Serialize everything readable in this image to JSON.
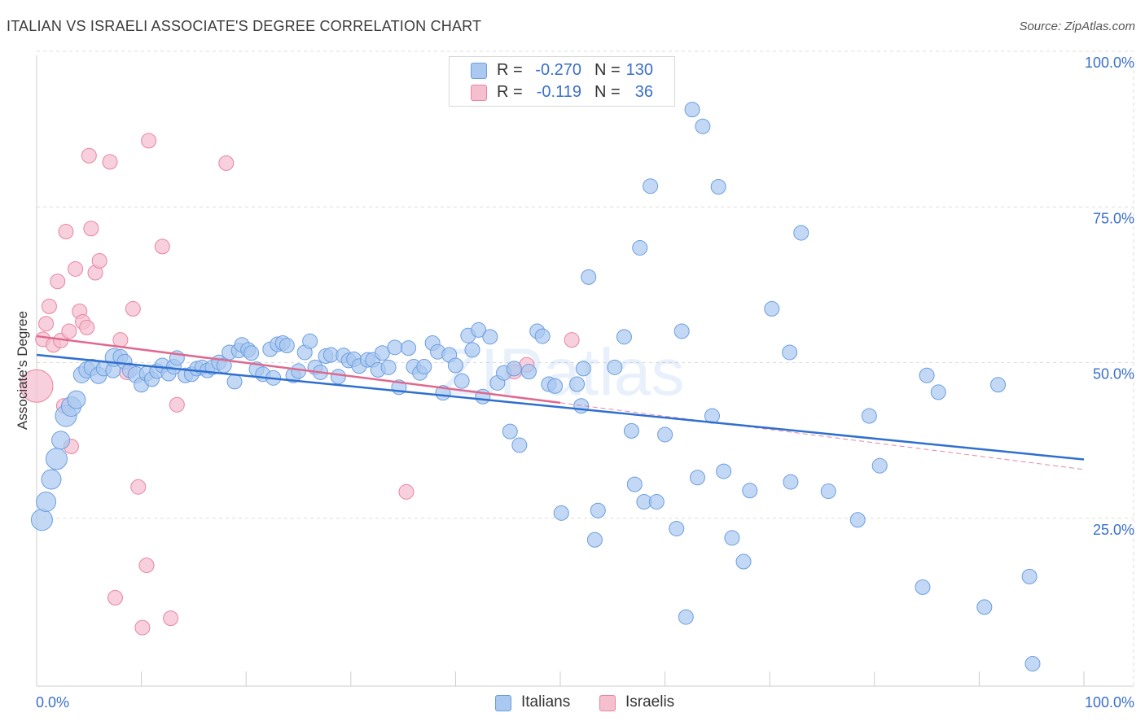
{
  "title": "ITALIAN VS ISRAELI ASSOCIATE'S DEGREE CORRELATION CHART",
  "source": "Source: ZipAtlas.com",
  "watermark": "ZIPatlas",
  "colors": {
    "blue_fill": "#aac8f0",
    "blue_stroke": "#6b9ee0",
    "blue_line": "#2f6fd0",
    "pink_fill": "#f6bfd0",
    "pink_stroke": "#e8869f",
    "pink_line": "#e0688f",
    "grid": "#dddddd",
    "axis_label": "#3a6fcb"
  },
  "legend": {
    "rows": [
      {
        "r_label": "R =",
        "r_value": "-0.270",
        "n_label": "N =",
        "n_value": "130",
        "swatch": "blue"
      },
      {
        "r_label": "R =",
        "r_value": "-0.119",
        "n_label": "N =",
        "n_value": "36",
        "swatch": "pink"
      }
    ]
  },
  "bottom_legend": [
    "Italians",
    "Israelis"
  ],
  "chart_data": {
    "type": "scatter",
    "title": "ITALIAN VS ISRAELI ASSOCIATE'S DEGREE CORRELATION CHART",
    "xlabel": "",
    "ylabel": "Associate's Degree",
    "xlim": [
      0,
      100
    ],
    "ylim": [
      0,
      100
    ],
    "x_tick_labels": [
      "0.0%",
      "100.0%"
    ],
    "y_tick_labels": [
      "100.0%",
      "75.0%",
      "50.0%",
      "25.0%"
    ],
    "y_ticks": [
      100,
      75,
      50,
      25
    ],
    "grid": true,
    "legend_position": "top-center",
    "series": [
      {
        "name": "Italians",
        "color": "#aac8f0",
        "trend": {
          "x": [
            0,
            100
          ],
          "y": [
            53.2,
            36.4
          ]
        },
        "points": [
          [
            0.5,
            26.7,
            13
          ],
          [
            0.9,
            29.6,
            12
          ],
          [
            1.4,
            33.2,
            12
          ],
          [
            1.9,
            36.5,
            13
          ],
          [
            2.3,
            39.5,
            11
          ],
          [
            2.8,
            43.4,
            13
          ],
          [
            3.3,
            44.9,
            12
          ],
          [
            3.8,
            46.0,
            11
          ],
          [
            4.3,
            50.0,
            10
          ],
          [
            4.8,
            50.8,
            10
          ],
          [
            5.3,
            51.2,
            10
          ],
          [
            5.9,
            49.9,
            10
          ],
          [
            6.4,
            51.0,
            9
          ],
          [
            7.3,
            50.7,
            9
          ],
          [
            7.4,
            52.8,
            11
          ],
          [
            8.0,
            52.9,
            9
          ],
          [
            8.4,
            52.1,
            9
          ],
          [
            8.9,
            50.7,
            9
          ],
          [
            9.5,
            50.0,
            10
          ],
          [
            10.0,
            48.4,
            9
          ],
          [
            10.5,
            50.2,
            9
          ],
          [
            11.0,
            49.3,
            9
          ],
          [
            11.5,
            50.6,
            9
          ],
          [
            12.0,
            51.5,
            9
          ],
          [
            12.6,
            50.2,
            9
          ],
          [
            13.1,
            51.3,
            9
          ],
          [
            13.4,
            52.7,
            9
          ],
          [
            14.2,
            49.9,
            9
          ],
          [
            14.8,
            50.1,
            9
          ],
          [
            15.3,
            51.0,
            9
          ],
          [
            15.8,
            51.2,
            9
          ],
          [
            16.3,
            50.7,
            9
          ],
          [
            16.8,
            51.2,
            9
          ],
          [
            17.4,
            52.0,
            9
          ],
          [
            17.9,
            51.5,
            9
          ],
          [
            18.4,
            53.6,
            9
          ],
          [
            18.9,
            48.9,
            9
          ],
          [
            19.3,
            53.9,
            9
          ],
          [
            19.6,
            54.8,
            9
          ],
          [
            20.2,
            54.0,
            9
          ],
          [
            20.5,
            53.5,
            9
          ],
          [
            21.0,
            50.9,
            9
          ],
          [
            21.6,
            50.1,
            9
          ],
          [
            22.3,
            54.1,
            9
          ],
          [
            23.0,
            54.9,
            9
          ],
          [
            23.5,
            55.1,
            9
          ],
          [
            23.9,
            54.7,
            9
          ],
          [
            22.6,
            49.5,
            9
          ],
          [
            24.5,
            49.9,
            9
          ],
          [
            25.0,
            50.6,
            9
          ],
          [
            25.6,
            53.6,
            9
          ],
          [
            26.1,
            55.4,
            9
          ],
          [
            26.6,
            51.2,
            9
          ],
          [
            27.1,
            50.4,
            9
          ],
          [
            27.6,
            53.0,
            9
          ],
          [
            28.1,
            53.2,
            9
          ],
          [
            28.8,
            49.7,
            9
          ],
          [
            29.3,
            53.1,
            9
          ],
          [
            29.8,
            52.3,
            9
          ],
          [
            30.3,
            52.5,
            9
          ],
          [
            30.8,
            51.4,
            9
          ],
          [
            31.6,
            52.4,
            9
          ],
          [
            32.1,
            52.4,
            9
          ],
          [
            32.6,
            50.8,
            9
          ],
          [
            33.0,
            53.5,
            9
          ],
          [
            33.6,
            51.2,
            9
          ],
          [
            34.2,
            54.4,
            9
          ],
          [
            34.6,
            48.0,
            9
          ],
          [
            35.5,
            54.3,
            9
          ],
          [
            36.0,
            51.3,
            9
          ],
          [
            36.6,
            50.3,
            9
          ],
          [
            37.0,
            51.3,
            9
          ],
          [
            37.8,
            55.1,
            9
          ],
          [
            38.3,
            53.7,
            9
          ],
          [
            38.8,
            47.1,
            9
          ],
          [
            39.4,
            53.2,
            9
          ],
          [
            40.0,
            51.5,
            9
          ],
          [
            40.6,
            49.0,
            9
          ],
          [
            41.2,
            56.3,
            9
          ],
          [
            41.6,
            54.0,
            9
          ],
          [
            42.2,
            57.2,
            9
          ],
          [
            42.6,
            46.5,
            9
          ],
          [
            43.3,
            56.1,
            9
          ],
          [
            44.0,
            48.7,
            9
          ],
          [
            44.6,
            50.3,
            9
          ],
          [
            45.2,
            40.9,
            9
          ],
          [
            45.6,
            51.0,
            9
          ],
          [
            46.1,
            38.7,
            9
          ],
          [
            47.0,
            50.5,
            9
          ],
          [
            47.8,
            57.0,
            9
          ],
          [
            48.3,
            56.2,
            9
          ],
          [
            48.9,
            48.5,
            9
          ],
          [
            49.5,
            48.2,
            9
          ],
          [
            50.1,
            27.8,
            9
          ],
          [
            51.6,
            48.5,
            9
          ],
          [
            52.0,
            45.0,
            9
          ],
          [
            52.2,
            51.0,
            9
          ],
          [
            52.7,
            65.7,
            9
          ],
          [
            53.3,
            23.5,
            9
          ],
          [
            53.6,
            28.2,
            9
          ],
          [
            55.2,
            51.2,
            9
          ],
          [
            56.1,
            56.1,
            9
          ],
          [
            56.8,
            41.0,
            9
          ],
          [
            57.1,
            32.4,
            9
          ],
          [
            57.6,
            70.4,
            9
          ],
          [
            58.0,
            29.6,
            9
          ],
          [
            58.6,
            80.3,
            9
          ],
          [
            59.2,
            29.6,
            9
          ],
          [
            60.0,
            40.4,
            9
          ],
          [
            61.1,
            25.3,
            9
          ],
          [
            61.6,
            57.0,
            9
          ],
          [
            62.0,
            11.1,
            9
          ],
          [
            62.6,
            92.6,
            9
          ],
          [
            63.1,
            33.5,
            9
          ],
          [
            63.6,
            89.9,
            9
          ],
          [
            64.5,
            43.4,
            9
          ],
          [
            65.1,
            80.2,
            9
          ],
          [
            65.6,
            34.5,
            9
          ],
          [
            66.4,
            23.8,
            9
          ],
          [
            67.5,
            20.0,
            9
          ],
          [
            68.1,
            31.4,
            9
          ],
          [
            70.2,
            60.6,
            9
          ],
          [
            72.0,
            32.8,
            9
          ],
          [
            73.0,
            72.8,
            9
          ],
          [
            75.6,
            31.3,
            9
          ],
          [
            78.4,
            26.7,
            9
          ],
          [
            79.5,
            43.4,
            9
          ],
          [
            80.5,
            35.4,
            9
          ],
          [
            84.6,
            15.9,
            9
          ],
          [
            85.0,
            49.9,
            9
          ],
          [
            86.1,
            47.2,
            9
          ],
          [
            90.5,
            12.7,
            9
          ],
          [
            91.8,
            48.4,
            9
          ],
          [
            94.8,
            17.6,
            9
          ],
          [
            95.1,
            3.6,
            9
          ],
          [
            71.9,
            53.6,
            9
          ]
        ]
      },
      {
        "name": "Israelis",
        "color": "#f6bfd0",
        "trend": {
          "x": [
            0,
            50
          ],
          "y": [
            56.2,
            45.5
          ]
        },
        "trend_dashed": {
          "x": [
            50,
            100
          ],
          "y": [
            45.5,
            34.8
          ]
        },
        "points": [
          [
            0.0,
            48.2,
            20
          ],
          [
            0.6,
            55.7,
            9
          ],
          [
            0.9,
            58.2,
            9
          ],
          [
            1.2,
            61.0,
            9
          ],
          [
            1.6,
            54.8,
            9
          ],
          [
            2.0,
            65.0,
            9
          ],
          [
            2.3,
            55.5,
            9
          ],
          [
            2.6,
            45.0,
            9
          ],
          [
            2.8,
            73.0,
            9
          ],
          [
            3.1,
            57.0,
            9
          ],
          [
            3.3,
            38.5,
            9
          ],
          [
            3.7,
            67.0,
            9
          ],
          [
            4.1,
            60.2,
            9
          ],
          [
            4.4,
            58.5,
            9
          ],
          [
            4.8,
            57.6,
            9
          ],
          [
            5.0,
            85.2,
            9
          ],
          [
            5.2,
            73.5,
            9
          ],
          [
            5.6,
            66.4,
            9
          ],
          [
            6.0,
            68.3,
            9
          ],
          [
            7.0,
            84.2,
            9
          ],
          [
            7.5,
            14.2,
            9
          ],
          [
            8.0,
            55.6,
            9
          ],
          [
            8.6,
            50.4,
            9
          ],
          [
            9.2,
            60.6,
            9
          ],
          [
            9.7,
            32.0,
            9
          ],
          [
            10.1,
            9.4,
            9
          ],
          [
            10.5,
            19.4,
            9
          ],
          [
            10.7,
            87.6,
            9
          ],
          [
            12.0,
            70.6,
            9
          ],
          [
            12.8,
            10.9,
            9
          ],
          [
            13.4,
            45.2,
            9
          ],
          [
            18.1,
            84.0,
            9
          ],
          [
            35.3,
            31.2,
            9
          ],
          [
            45.6,
            50.5,
            9
          ],
          [
            51.1,
            55.6,
            9
          ],
          [
            46.8,
            51.6,
            9
          ]
        ]
      }
    ]
  }
}
